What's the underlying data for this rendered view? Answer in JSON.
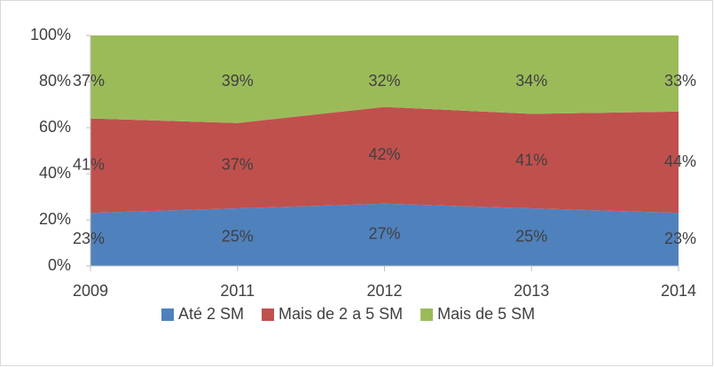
{
  "chart_data": {
    "type": "stacked_area",
    "categories": [
      "2009",
      "2011",
      "2012",
      "2013",
      "2014"
    ],
    "series": [
      {
        "name": "Até 2 SM",
        "color": "#4f81bd",
        "values": [
          23,
          25,
          27,
          25,
          23
        ],
        "value_labels": [
          "23%",
          "25%",
          "27%",
          "25%",
          "23%"
        ]
      },
      {
        "name": "Mais de 2 a 5 SM",
        "color": "#c0504d",
        "values": [
          41,
          37,
          42,
          41,
          44
        ],
        "value_labels": [
          "41%",
          "37%",
          "42%",
          "41%",
          "44%"
        ]
      },
      {
        "name": "Mais de 5 SM",
        "color": "#9bbb59",
        "values": [
          37,
          39,
          32,
          34,
          33
        ],
        "value_labels": [
          "37%",
          "39%",
          "32%",
          "34%",
          "33%"
        ]
      }
    ],
    "ylim": [
      0,
      100
    ],
    "yticks": [
      {
        "value": 0,
        "label": "0%"
      },
      {
        "value": 20,
        "label": "20%"
      },
      {
        "value": 40,
        "label": "40%"
      },
      {
        "value": 60,
        "label": "60%"
      },
      {
        "value": 80,
        "label": "80%"
      },
      {
        "value": 100,
        "label": "100%"
      }
    ],
    "legend": "bottom"
  }
}
